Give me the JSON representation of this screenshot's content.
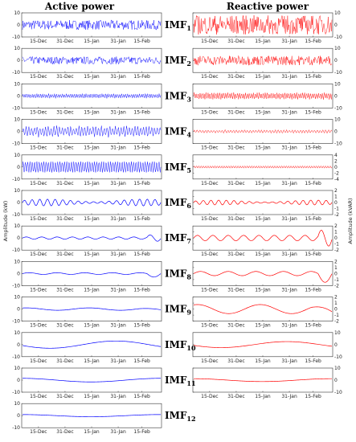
{
  "columns": {
    "left_title": "Active power",
    "right_title": "Reactive power"
  },
  "left_ylabel": "Amplitude (kW)",
  "right_ylabel": "Amplitude (kVAR)",
  "date_ticks": [
    "15-Dec",
    "31-Dec",
    "15-Jan",
    "31-Jan",
    "15-Feb"
  ],
  "colors": {
    "active": "#0000ff",
    "reactive": "#ff0000"
  },
  "imfs": [
    {
      "base": "IMF",
      "sub": "1"
    },
    {
      "base": "IMF",
      "sub": "2"
    },
    {
      "base": "IMF",
      "sub": "3"
    },
    {
      "base": "IMF",
      "sub": "4"
    },
    {
      "base": "IMF",
      "sub": "5"
    },
    {
      "base": "IMF",
      "sub": "6"
    },
    {
      "base": "IMF",
      "sub": "7"
    },
    {
      "base": "IMF",
      "sub": "8"
    },
    {
      "base": "IMF",
      "sub": "9"
    },
    {
      "base": "IMF",
      "sub": "10"
    },
    {
      "base": "IMF",
      "sub": "11"
    },
    {
      "base": "IMF",
      "sub": "12"
    }
  ],
  "chart_data": [
    {
      "type": "line",
      "title": "Active power",
      "ylabel": "Amplitude (kW)",
      "x_tick_labels": [
        "15-Dec",
        "31-Dec",
        "15-Jan",
        "31-Jan",
        "15-Feb"
      ],
      "series": [
        {
          "name": "IMF1",
          "color": "#0000ff",
          "y_ticks": [
            -10,
            0,
            10
          ],
          "ylim": [
            -10,
            10
          ],
          "visible_amplitude": 4,
          "oscillation": "very high frequency noise"
        },
        {
          "name": "IMF2",
          "color": "#0000ff",
          "y_ticks": [
            -10,
            0,
            10
          ],
          "ylim": [
            -10,
            10
          ],
          "visible_amplitude": 4,
          "oscillation": "high frequency"
        },
        {
          "name": "IMF3",
          "color": "#0000ff",
          "y_ticks": [
            -10,
            0,
            10
          ],
          "ylim": [
            -10,
            10
          ],
          "visible_amplitude": 2,
          "oscillation": "high frequency"
        },
        {
          "name": "IMF4",
          "color": "#0000ff",
          "y_ticks": [
            -10,
            0,
            10
          ],
          "ylim": [
            -10,
            10
          ],
          "visible_amplitude": 5,
          "oscillation": "high frequency, dense"
        },
        {
          "name": "IMF5",
          "color": "#0000ff",
          "y_ticks": [
            -10,
            0,
            10
          ],
          "ylim": [
            -10,
            10
          ],
          "visible_amplitude": 5,
          "oscillation": "medium-high frequency"
        },
        {
          "name": "IMF6",
          "color": "#0000ff",
          "y_ticks": [
            -10,
            0,
            10
          ],
          "ylim": [
            -10,
            10
          ],
          "visible_amplitude": 3.5,
          "oscillation": "daily cycle"
        },
        {
          "name": "IMF7",
          "color": "#0000ff",
          "y_ticks": [
            -10,
            0,
            10
          ],
          "ylim": [
            -10,
            10
          ],
          "visible_amplitude": 2,
          "oscillation": "multi-day"
        },
        {
          "name": "IMF8",
          "color": "#0000ff",
          "y_ticks": [
            -10,
            0,
            10
          ],
          "ylim": [
            -10,
            10
          ],
          "visible_amplitude": 2,
          "oscillation": "weekly, large swing at end"
        },
        {
          "name": "IMF9",
          "color": "#0000ff",
          "y_ticks": [
            -10,
            0,
            10
          ],
          "ylim": [
            -10,
            10
          ],
          "visible_amplitude": 2,
          "oscillation": "bi-weekly, dip near end"
        },
        {
          "name": "IMF10",
          "color": "#0000ff",
          "y_ticks": [
            -10,
            0,
            10
          ],
          "ylim": [
            -10,
            10
          ],
          "visible_amplitude": 6,
          "oscillation": "monthly"
        },
        {
          "name": "IMF11",
          "color": "#0000ff",
          "y_ticks": [
            -10,
            0,
            10
          ],
          "ylim": [
            -10,
            10
          ],
          "visible_amplitude": 5,
          "oscillation": "one full cycle"
        },
        {
          "name": "IMF12",
          "color": "#0000ff",
          "y_ticks": [
            -10,
            0,
            10
          ],
          "ylim": [
            -10,
            10
          ],
          "visible_amplitude": 3,
          "oscillation": "trend, one cycle"
        }
      ]
    },
    {
      "type": "line",
      "title": "Reactive power",
      "ylabel": "Amplitude (kVAR)",
      "x_tick_labels": [
        "15-Dec",
        "31-Dec",
        "15-Jan",
        "31-Jan",
        "15-Feb"
      ],
      "series": [
        {
          "name": "IMF1",
          "color": "#ff0000",
          "y_ticks": [
            -10,
            0,
            10
          ],
          "ylim": [
            -10,
            10
          ],
          "visible_amplitude": 8,
          "oscillation": "very high frequency noise"
        },
        {
          "name": "IMF2",
          "color": "#ff0000",
          "y_ticks": [
            -10,
            0,
            10
          ],
          "ylim": [
            -10,
            10
          ],
          "visible_amplitude": 5,
          "oscillation": "high frequency"
        },
        {
          "name": "IMF3",
          "color": "#ff0000",
          "y_ticks": [
            -10,
            0,
            10
          ],
          "ylim": [
            -10,
            10
          ],
          "visible_amplitude": 3,
          "oscillation": "high frequency"
        },
        {
          "name": "IMF4",
          "color": "#ff0000",
          "y_ticks": [
            -10,
            0,
            10
          ],
          "ylim": [
            -10,
            10
          ],
          "visible_amplitude": 1.5,
          "oscillation": "low amplitude, spike at end"
        },
        {
          "name": "IMF5",
          "color": "#ff0000",
          "y_ticks": [
            -4,
            -2,
            0,
            2,
            4
          ],
          "ylim": [
            -4,
            4
          ],
          "visible_amplitude": 0.4,
          "oscillation": "low amplitude, spikes at ends"
        },
        {
          "name": "IMF6",
          "color": "#ff0000",
          "y_ticks": [
            -2,
            -1,
            0,
            1,
            2
          ],
          "ylim": [
            -2,
            2
          ],
          "visible_amplitude": 0.5,
          "oscillation": "daily cycle"
        },
        {
          "name": "IMF7",
          "color": "#ff0000",
          "y_ticks": [
            -2,
            -1,
            0,
            1,
            2
          ],
          "ylim": [
            -2,
            2
          ],
          "visible_amplitude": 1,
          "oscillation": "multi-day"
        },
        {
          "name": "IMF8",
          "color": "#ff0000",
          "y_ticks": [
            -2,
            -1,
            0,
            1,
            2
          ],
          "ylim": [
            -2,
            2
          ],
          "visible_amplitude": 1,
          "oscillation": "weekly, larger at ends"
        },
        {
          "name": "IMF9",
          "color": "#ff0000",
          "y_ticks": [
            -2,
            -1,
            0,
            1,
            2
          ],
          "ylim": [
            -2,
            2
          ],
          "visible_amplitude": 1.5,
          "oscillation": "slow, large swing early"
        },
        {
          "name": "IMF10",
          "color": "#ff0000",
          "y_ticks": [
            -10,
            0,
            10
          ],
          "ylim": [
            -10,
            10
          ],
          "visible_amplitude": 5,
          "oscillation": "one cycle"
        },
        {
          "name": "IMF11",
          "color": "#ff0000",
          "y_ticks": [
            -10,
            0,
            10
          ],
          "ylim": [
            -10,
            10
          ],
          "visible_amplitude": 4,
          "oscillation": "trend"
        }
      ]
    }
  ]
}
